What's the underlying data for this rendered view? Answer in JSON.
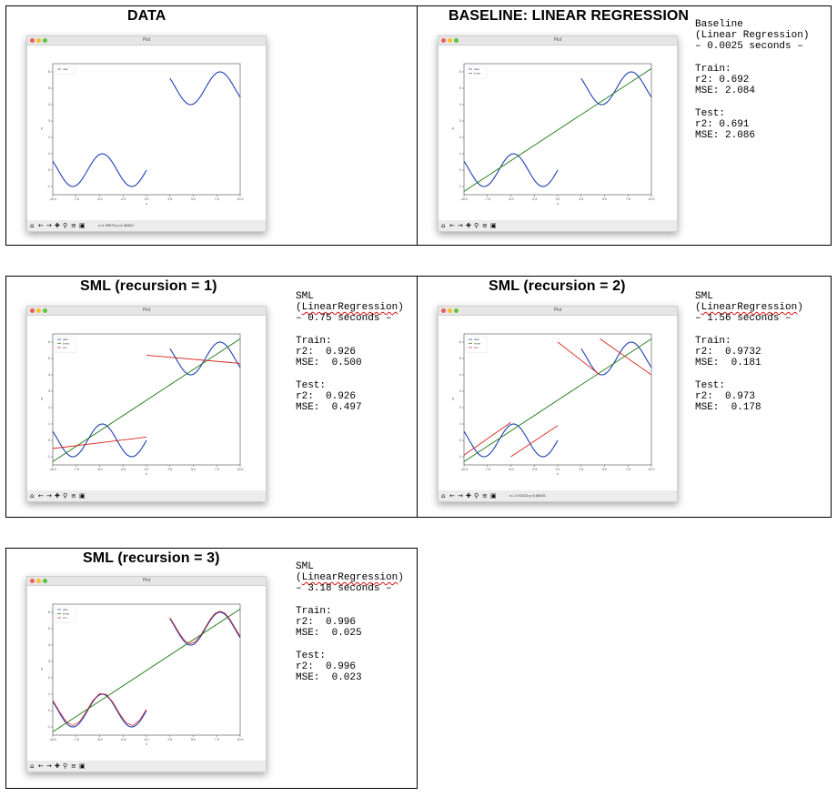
{
  "colors": {
    "data_line": "#1f3fb4",
    "linear_line": "#1a7a12",
    "sml_line": "#d8251f",
    "window_red": "#ec5f5a",
    "window_yellow": "#f5bf2f",
    "window_green": "#5fc53f"
  },
  "window": {
    "title": "Plot",
    "toolbar_icons": [
      "home-icon",
      "back-arrow-icon",
      "forward-arrow-icon",
      "pan-icon",
      "zoom-icon",
      "configure-icon",
      "save-icon"
    ]
  },
  "panels": [
    {
      "id": "data",
      "title": "DATA",
      "coords": "x=1.99576   y=4.46362",
      "stats": []
    },
    {
      "id": "baseline",
      "title": "BASELINE: LINEAR REGRESSION",
      "coords": "",
      "stats": [
        "Baseline",
        "(Linear Regression)",
        "– 0.0025 seconds –",
        "",
        "Train:",
        "r2: 0.692",
        "MSE: 2.084",
        "",
        "Test:",
        "r2: 0.691",
        "MSE: 2.086"
      ]
    },
    {
      "id": "sml1",
      "title": "SML (recursion = 1)",
      "coords": "",
      "stats": [
        "SML",
        "(LinearRegression)",
        "– 0.75 seconds –",
        "",
        "Train:",
        "r2:  0.926",
        "MSE:  0.500",
        "",
        "Test:",
        "r2:  0.926",
        "MSE:  0.497"
      ]
    },
    {
      "id": "sml2",
      "title": "SML (recursion = 2)",
      "coords": "x=-2.91523   y=0.68001",
      "stats": [
        "SML",
        "(LinearRegression)",
        "– 1.56 seconds –",
        "",
        "Train:",
        "r2:  0.9732",
        "MSE:  0.181",
        "",
        "Test:",
        "r2:  0.973",
        "MSE:  0.178"
      ]
    },
    {
      "id": "sml3",
      "title": "SML (recursion = 3)",
      "coords": "",
      "stats": [
        "SML",
        "(LinearRegression)",
        "– 3.18 seconds –",
        "",
        "Train:",
        "r2:  0.996",
        "MSE:  0.025",
        "",
        "Test:",
        "r2:  0.996",
        "MSE:  0.023"
      ]
    }
  ],
  "chart_data": [
    {
      "panel": "data",
      "type": "line",
      "xlabel": "x",
      "ylabel": "y",
      "xlim": [
        -10,
        10
      ],
      "ylim": [
        -1.5,
        6.5
      ],
      "xticks": [
        "-10.0",
        "-7.5",
        "-5.0",
        "-2.5",
        "0.0",
        "2.5",
        "5.0",
        "7.5",
        "10.0"
      ],
      "yticks": [
        "-1",
        "0",
        "1",
        "2",
        "3",
        "4",
        "5",
        "6"
      ],
      "legend": [
        "data"
      ],
      "legend_position": "top-left",
      "grid": false,
      "series": [
        {
          "name": "data",
          "function": "sin(x) for x in [-10,0]; sin(x)+5 for x in [2.5,10]"
        }
      ],
      "fit_segments": []
    },
    {
      "panel": "baseline",
      "type": "line",
      "xlabel": "x",
      "ylabel": "y",
      "xlim": [
        -10,
        10
      ],
      "ylim": [
        -1.5,
        6.5
      ],
      "xticks": [
        "-10.0",
        "-7.5",
        "-5.0",
        "-2.5",
        "0.0",
        "2.5",
        "5.0",
        "7.5",
        "10.0"
      ],
      "yticks": [
        "-1",
        "0",
        "1",
        "2",
        "3",
        "4",
        "5",
        "6"
      ],
      "legend": [
        "data",
        "linear"
      ],
      "legend_position": "top-left",
      "grid": false,
      "linear_fit": [
        [
          -10,
          -1.3
        ],
        [
          10,
          6.2
        ]
      ],
      "fit_segments": []
    },
    {
      "panel": "sml1",
      "type": "line",
      "xlabel": "x",
      "ylabel": "y",
      "xlim": [
        -10,
        10
      ],
      "ylim": [
        -1.5,
        6.5
      ],
      "xticks": [
        "-10.0",
        "-7.5",
        "-5.0",
        "-2.5",
        "0.0",
        "2.5",
        "5.0",
        "7.5",
        "10.0"
      ],
      "yticks": [
        "-1",
        "0",
        "1",
        "2",
        "3",
        "4",
        "5",
        "6"
      ],
      "legend": [
        "data",
        "linear",
        "sml"
      ],
      "legend_position": "top-left",
      "grid": false,
      "linear_fit": [
        [
          -10,
          -1.3
        ],
        [
          10,
          6.2
        ]
      ],
      "fit_segments": [
        [
          [
            -10,
            -0.5
          ],
          [
            0,
            0.2
          ]
        ],
        [
          [
            0,
            5.2
          ],
          [
            10,
            4.7
          ]
        ]
      ]
    },
    {
      "panel": "sml2",
      "type": "line",
      "xlabel": "x",
      "ylabel": "y",
      "xlim": [
        -10,
        10
      ],
      "ylim": [
        -1.5,
        6.5
      ],
      "xticks": [
        "-10.0",
        "-7.5",
        "-5.0",
        "-2.5",
        "0.0",
        "2.5",
        "5.0",
        "7.5",
        "10.0"
      ],
      "yticks": [
        "-1",
        "0",
        "1",
        "2",
        "3",
        "4",
        "5",
        "6"
      ],
      "legend": [
        "data",
        "linear",
        "sml"
      ],
      "legend_position": "top-left",
      "grid": false,
      "linear_fit": [
        [
          -10,
          -1.3
        ],
        [
          10,
          6.2
        ]
      ],
      "fit_segments": [
        [
          [
            -10,
            -0.9
          ],
          [
            -5,
            1.1
          ]
        ],
        [
          [
            -5,
            -1.0
          ],
          [
            0,
            0.9
          ]
        ],
        [
          [
            0,
            6.0
          ],
          [
            4.5,
            4.0
          ]
        ],
        [
          [
            4.5,
            6.2
          ],
          [
            10,
            4.0
          ]
        ]
      ]
    },
    {
      "panel": "sml3",
      "type": "line",
      "xlabel": "x",
      "ylabel": "y",
      "xlim": [
        -10,
        10
      ],
      "ylim": [
        -1.5,
        6.5
      ],
      "xticks": [
        "-10.0",
        "-7.5",
        "-5.0",
        "-2.5",
        "0.0",
        "2.5",
        "5.0",
        "7.5",
        "10.0"
      ],
      "yticks": [
        "-1",
        "0",
        "1",
        "2",
        "3",
        "4",
        "5",
        "6"
      ],
      "legend": [
        "data",
        "linear",
        "sml"
      ],
      "legend_position": "top-left",
      "grid": false,
      "linear_fit": [
        [
          -10,
          -1.3
        ],
        [
          10,
          6.2
        ]
      ],
      "fit_segments": "piecewise linear fit closely tracking the data curve"
    }
  ]
}
